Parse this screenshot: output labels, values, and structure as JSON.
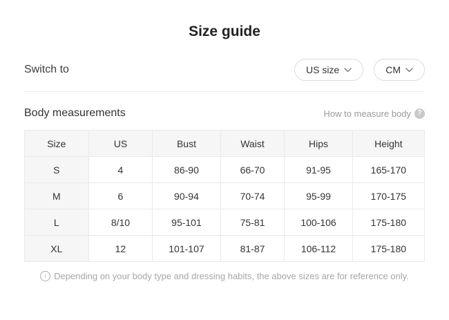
{
  "title": "Size guide",
  "switch_row": {
    "label": "Switch to",
    "size_selector_value": "US size",
    "unit_selector_value": "CM"
  },
  "measurements": {
    "heading": "Body measurements",
    "help_link_label": "How to measure body"
  },
  "table": {
    "columns": [
      "Size",
      "US",
      "Bust",
      "Waist",
      "Hips",
      "Height"
    ],
    "rows": [
      [
        "S",
        "4",
        "86-90",
        "66-70",
        "91-95",
        "165-170"
      ],
      [
        "M",
        "6",
        "90-94",
        "70-74",
        "95-99",
        "170-175"
      ],
      [
        "L",
        "8/10",
        "95-101",
        "75-81",
        "100-106",
        "175-180"
      ],
      [
        "XL",
        "12",
        "101-107",
        "81-87",
        "106-112",
        "175-180"
      ]
    ]
  },
  "footer": {
    "note": "Depending on your body type and dressing habits, the above sizes are for reference only."
  },
  "icons": {
    "question": "?",
    "info": "i"
  },
  "colors": {
    "header_bg": "#f6f6f6",
    "border": "#e9e9e9",
    "muted_text": "#a6a6a6",
    "pill_border": "#dcdcdc"
  }
}
